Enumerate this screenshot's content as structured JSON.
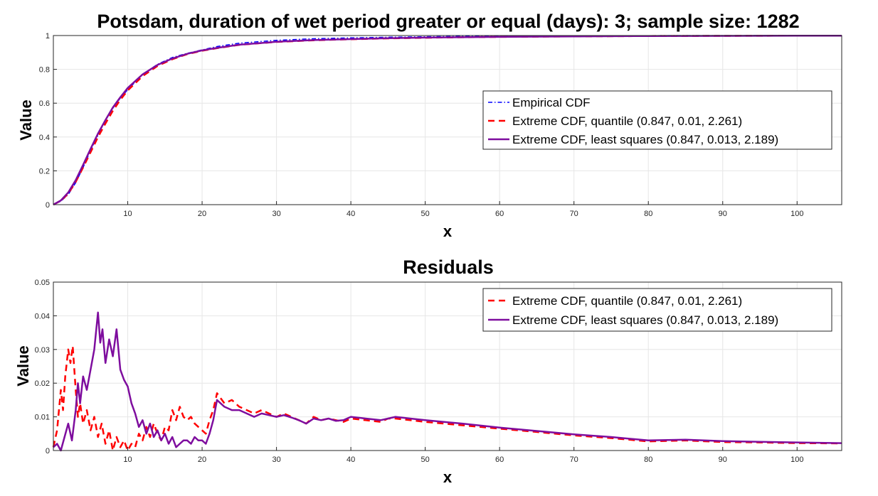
{
  "figure": {
    "main_title": "Potsdam, duration of wet period greater or equal (days): 3; sample size: 1282",
    "residuals_title": "Residuals"
  },
  "colors": {
    "empirical": "#0000ff",
    "quantile": "#ff0000",
    "least_squares": "#7e0d9e",
    "grid": "#e6e6e6",
    "axis": "#262626"
  },
  "chart_data": [
    {
      "type": "line",
      "id": "cdf",
      "title": "Potsdam, duration of wet period greater or equal (days): 3; sample size: 1282",
      "xlabel": "x",
      "ylabel": "Value",
      "xlim": [
        0,
        106
      ],
      "ylim": [
        0,
        1
      ],
      "xticks": [
        10,
        20,
        30,
        40,
        50,
        60,
        70,
        80,
        90,
        100
      ],
      "yticks": [
        0,
        0.2,
        0.4,
        0.6,
        0.8,
        1
      ],
      "ytick_labels": [
        "0",
        "0.2",
        "0.4",
        "0.6",
        "0.8",
        "1"
      ],
      "grid": true,
      "legend_position": "center-right",
      "series": [
        {
          "name": "Empirical CDF",
          "style": "dashdot",
          "color_key": "empirical",
          "x": [
            0,
            1,
            2,
            3,
            4,
            5,
            6,
            7,
            8,
            9,
            10,
            12,
            14,
            16,
            18,
            20,
            22,
            25,
            30,
            35,
            40,
            45,
            50,
            55,
            60,
            70,
            80,
            90,
            100,
            106
          ],
          "y": [
            0,
            0.02,
            0.06,
            0.13,
            0.22,
            0.32,
            0.41,
            0.5,
            0.57,
            0.63,
            0.68,
            0.77,
            0.83,
            0.87,
            0.895,
            0.915,
            0.935,
            0.955,
            0.972,
            0.981,
            0.986,
            0.99,
            0.993,
            0.995,
            0.996,
            0.998,
            0.999,
            0.9995,
            1,
            1
          ]
        },
        {
          "name": "Extreme CDF, quantile (0.847, 0.01, 2.261)",
          "style": "dashed",
          "color_key": "quantile",
          "x": [
            0,
            1,
            2,
            3,
            4,
            5,
            6,
            7,
            8,
            9,
            10,
            12,
            14,
            16,
            18,
            20,
            22,
            25,
            30,
            35,
            40,
            45,
            50,
            55,
            60,
            70,
            80,
            90,
            100,
            106
          ],
          "y": [
            0,
            0.023,
            0.065,
            0.135,
            0.22,
            0.31,
            0.4,
            0.48,
            0.555,
            0.62,
            0.675,
            0.76,
            0.82,
            0.86,
            0.89,
            0.91,
            0.925,
            0.945,
            0.962,
            0.972,
            0.978,
            0.983,
            0.987,
            0.99,
            0.992,
            0.995,
            0.997,
            0.998,
            0.999,
            0.999
          ]
        },
        {
          "name": "Extreme CDF, least squares (0.847, 0.013, 2.189)",
          "style": "solid",
          "color_key": "least_squares",
          "x": [
            0,
            1,
            2,
            3,
            4,
            5,
            6,
            7,
            8,
            9,
            10,
            12,
            14,
            16,
            18,
            20,
            22,
            25,
            30,
            35,
            40,
            45,
            50,
            55,
            60,
            70,
            80,
            90,
            100,
            106
          ],
          "y": [
            0,
            0.025,
            0.072,
            0.145,
            0.235,
            0.33,
            0.42,
            0.5,
            0.575,
            0.635,
            0.69,
            0.77,
            0.826,
            0.864,
            0.892,
            0.912,
            0.927,
            0.946,
            0.963,
            0.973,
            0.979,
            0.984,
            0.988,
            0.99,
            0.992,
            0.995,
            0.997,
            0.998,
            0.999,
            0.999
          ]
        }
      ]
    },
    {
      "type": "line",
      "id": "residuals",
      "title": "Residuals",
      "xlabel": "x",
      "ylabel": "Value",
      "xlim": [
        0,
        106
      ],
      "ylim": [
        0,
        0.05
      ],
      "xticks": [
        10,
        20,
        30,
        40,
        50,
        60,
        70,
        80,
        90,
        100
      ],
      "yticks": [
        0,
        0.01,
        0.02,
        0.03,
        0.04,
        0.05
      ],
      "ytick_labels": [
        "0",
        "0.01",
        "0.02",
        "0.03",
        "0.04",
        "0.05"
      ],
      "grid": true,
      "legend_position": "top-right",
      "series": [
        {
          "name": "Extreme CDF, quantile (0.847, 0.01, 2.261)",
          "style": "dashed",
          "color_key": "quantile",
          "x": [
            0,
            0.5,
            1,
            1.3,
            1.6,
            2,
            2.3,
            2.6,
            3,
            3.3,
            3.6,
            4,
            4.5,
            5,
            5.5,
            6,
            6.5,
            7,
            7.5,
            8,
            8.5,
            9,
            9.5,
            10,
            10.5,
            11,
            11.5,
            12,
            12.5,
            13,
            13.5,
            14,
            14.5,
            15,
            15.5,
            16,
            16.5,
            17,
            17.5,
            18,
            18.5,
            19,
            19.5,
            20,
            20.5,
            21,
            21.5,
            22,
            23,
            24,
            25,
            26,
            27,
            28,
            29,
            30,
            31,
            32,
            33,
            34,
            35,
            36,
            37,
            38,
            39,
            40,
            42,
            44,
            45,
            46,
            48,
            50,
            55,
            60,
            65,
            70,
            75,
            80,
            85,
            90,
            95,
            100,
            106
          ],
          "y": [
            0.001,
            0.006,
            0.018,
            0.012,
            0.022,
            0.03,
            0.026,
            0.031,
            0.018,
            0.01,
            0.014,
            0.008,
            0.012,
            0.006,
            0.01,
            0.004,
            0.008,
            0.002,
            0.006,
            0.0,
            0.004,
            0.001,
            0.003,
            0.0,
            0.002,
            0.001,
            0.005,
            0.003,
            0.007,
            0.004,
            0.008,
            0.005,
            0.003,
            0.007,
            0.006,
            0.012,
            0.009,
            0.013,
            0.01,
            0.009,
            0.01,
            0.008,
            0.007,
            0.006,
            0.005,
            0.009,
            0.012,
            0.017,
            0.014,
            0.015,
            0.013,
            0.012,
            0.011,
            0.012,
            0.011,
            0.01,
            0.011,
            0.01,
            0.009,
            0.008,
            0.01,
            0.009,
            0.0095,
            0.009,
            0.0085,
            0.0095,
            0.009,
            0.0085,
            0.0095,
            0.0095,
            0.009,
            0.0085,
            0.0075,
            0.0065,
            0.0055,
            0.0045,
            0.0037,
            0.0027,
            0.003,
            0.0025,
            0.0024,
            0.0022,
            0.0021
          ]
        },
        {
          "name": "Extreme CDF, least squares (0.847, 0.013, 2.189)",
          "style": "solid",
          "color_key": "least_squares",
          "x": [
            0,
            0.5,
            1,
            1.5,
            2,
            2.5,
            3,
            3.3,
            3.6,
            4,
            4.5,
            5,
            5.5,
            6,
            6.3,
            6.6,
            7,
            7.5,
            8,
            8.5,
            9,
            9.5,
            10,
            10.5,
            11,
            11.5,
            12,
            12.5,
            13,
            13.5,
            14,
            14.5,
            15,
            15.5,
            16,
            16.5,
            17,
            17.5,
            18,
            18.5,
            19,
            19.5,
            20,
            20.5,
            21,
            21.5,
            22,
            23,
            24,
            25,
            26,
            27,
            28,
            29,
            30,
            31,
            32,
            33,
            34,
            35,
            36,
            37,
            38,
            39,
            40,
            42,
            44,
            45,
            46,
            48,
            50,
            55,
            60,
            65,
            70,
            75,
            80,
            85,
            90,
            95,
            100,
            106
          ],
          "y": [
            0.001,
            0.002,
            0.0,
            0.004,
            0.008,
            0.003,
            0.012,
            0.02,
            0.014,
            0.022,
            0.018,
            0.024,
            0.03,
            0.041,
            0.032,
            0.036,
            0.026,
            0.033,
            0.028,
            0.036,
            0.024,
            0.021,
            0.019,
            0.014,
            0.011,
            0.007,
            0.009,
            0.005,
            0.008,
            0.004,
            0.006,
            0.003,
            0.005,
            0.002,
            0.004,
            0.001,
            0.002,
            0.003,
            0.003,
            0.002,
            0.004,
            0.003,
            0.003,
            0.002,
            0.005,
            0.009,
            0.015,
            0.013,
            0.012,
            0.012,
            0.011,
            0.01,
            0.011,
            0.0105,
            0.01,
            0.0105,
            0.0098,
            0.009,
            0.008,
            0.0095,
            0.009,
            0.0095,
            0.0088,
            0.009,
            0.01,
            0.0095,
            0.009,
            0.0095,
            0.01,
            0.0095,
            0.009,
            0.008,
            0.0068,
            0.0058,
            0.0048,
            0.004,
            0.003,
            0.0032,
            0.0028,
            0.0026,
            0.0024,
            0.0022
          ]
        }
      ]
    }
  ]
}
